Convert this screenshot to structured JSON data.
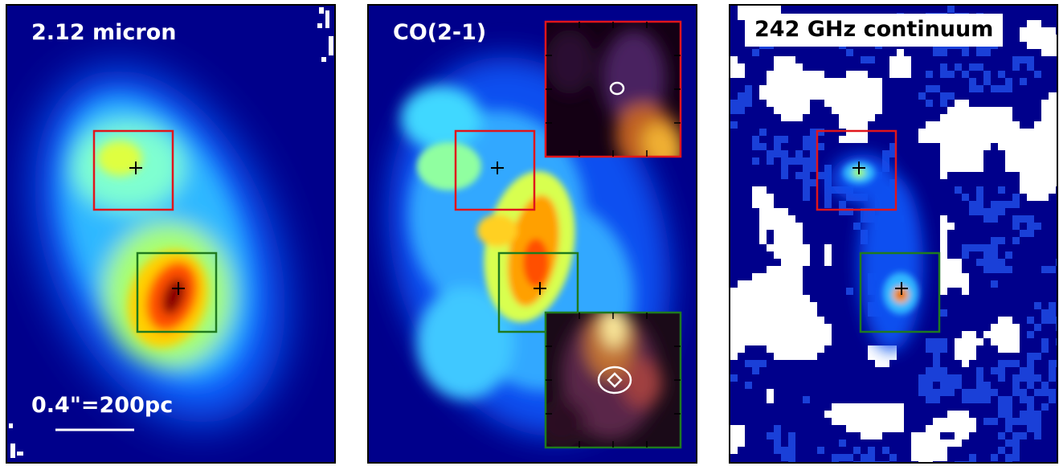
{
  "panels": [
    {
      "id": "p1",
      "label": "2.12 micron",
      "scalebar": "0.4\"=200pc"
    },
    {
      "id": "p2",
      "label": "CO(2-1)"
    },
    {
      "id": "p3",
      "label": "242 GHz continuum"
    }
  ],
  "colors": {
    "background_map": "#00008b",
    "box_north": "#e0151b",
    "box_south": "#1f7a1f",
    "inset_background": "#140014"
  }
}
